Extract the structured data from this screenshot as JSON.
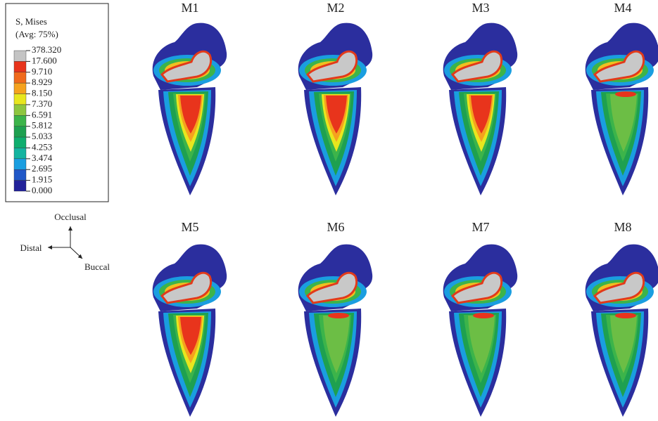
{
  "legend": {
    "title": "S, Mises",
    "subtitle": "(Avg: 75%)",
    "labels": [
      "378.320",
      "17.600",
      "9.710",
      "8.929",
      "8.150",
      "7.370",
      "6.591",
      "5.812",
      "5.033",
      "4.253",
      "3.474",
      "2.695",
      "1.915",
      "0.000"
    ],
    "colors": [
      "#c4c4c4",
      "#e8341c",
      "#f06a1c",
      "#f5a21e",
      "#e8e61e",
      "#8ec63f",
      "#3cb44a",
      "#1ea050",
      "#0fae6e",
      "#14b4a0",
      "#1a9ee0",
      "#2058c8",
      "#22229a"
    ]
  },
  "panels": [
    "M1",
    "M2",
    "M3",
    "M4",
    "M5",
    "M6",
    "M7",
    "M8"
  ],
  "axes": {
    "up": "Occlusal",
    "left": "Distal",
    "diag": "Buccal"
  }
}
